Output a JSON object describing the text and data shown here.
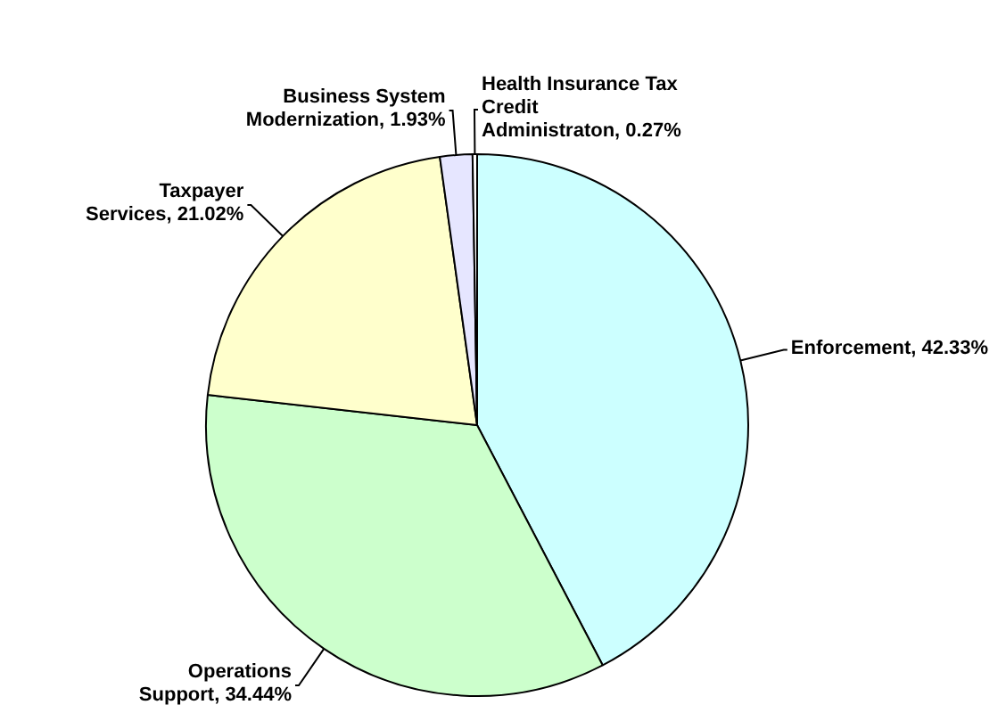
{
  "chart_data": {
    "type": "pie",
    "categories": [
      "Enforcement",
      "Operations Support",
      "Taxpayer Services",
      "Business System Modernization",
      "Health Insurance Tax Credit Administraton"
    ],
    "values": [
      42.33,
      34.44,
      21.02,
      1.93,
      0.27
    ],
    "value_labels": [
      "42.33%",
      "34.44%",
      "21.02%",
      "1.93%",
      "0.27%"
    ],
    "colors": [
      "#ccffff",
      "#ccffcc",
      "#ffffcc",
      "#e6e6ff",
      "#ffffff"
    ]
  }
}
